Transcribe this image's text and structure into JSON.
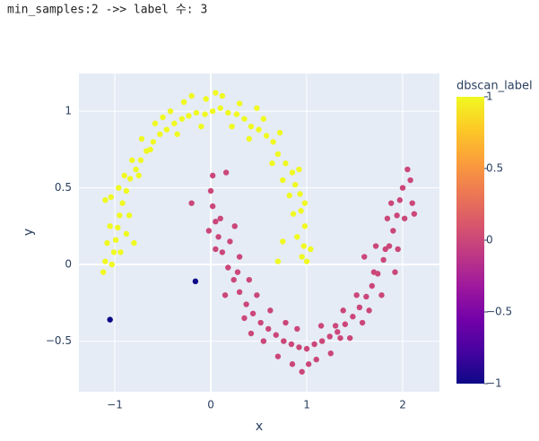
{
  "chart_data": {
    "type": "scatter",
    "title": "min_samples:2 ->> label 수: 3",
    "xlabel": "x",
    "ylabel": "y",
    "colorbar_title": "dbscan_label",
    "x": [
      1.0,
      0.97,
      0.98,
      0.94,
      0.93,
      0.88,
      0.85,
      0.78,
      0.7,
      0.65,
      0.58,
      0.5,
      0.42,
      0.35,
      0.27,
      0.18,
      0.1,
      0.02,
      -0.06,
      -0.15,
      -0.23,
      -0.3,
      -0.38,
      -0.46,
      -0.53,
      -0.6,
      -0.67,
      -0.73,
      -0.78,
      -0.84,
      -0.88,
      -0.92,
      -0.95,
      -0.97,
      -0.99,
      -1.01,
      -1.03,
      -1.12,
      -1.1,
      -1.05,
      1.04,
      0.9,
      0.95,
      0.86,
      0.98,
      0.82,
      0.75,
      0.92,
      0.64,
      0.72,
      0.55,
      0.48,
      0.4,
      0.3,
      0.22,
      0.12,
      0.05,
      -0.05,
      -0.1,
      -0.2,
      -0.28,
      -0.35,
      -0.42,
      -0.5,
      -0.58,
      -0.63,
      -0.72,
      -0.75,
      -0.82,
      -0.9,
      -0.96,
      -1.04,
      -0.85,
      -0.88,
      -1.08,
      -0.94,
      -1.1,
      -0.8,
      0.7,
      0.75,
      0.0,
      0.02,
      0.05,
      0.08,
      0.12,
      0.18,
      0.24,
      0.3,
      0.37,
      0.44,
      0.52,
      0.6,
      0.68,
      0.76,
      0.84,
      0.92,
      1.0,
      1.08,
      1.16,
      1.24,
      1.32,
      1.4,
      1.48,
      1.55,
      1.62,
      1.68,
      1.74,
      1.8,
      1.86,
      1.9,
      1.94,
      1.97,
      2.0,
      1.72,
      0.16,
      -0.2,
      0.02,
      2.12,
      2.05,
      1.6,
      0.05,
      0.1,
      -0.02,
      0.2,
      0.28,
      0.15,
      0.35,
      0.48,
      0.42,
      0.55,
      0.62,
      0.7,
      0.78,
      0.85,
      0.95,
      1.02,
      0.9,
      1.1,
      1.15,
      1.25,
      1.3,
      1.35,
      1.38,
      1.45,
      1.52,
      1.58,
      1.65,
      1.7,
      1.78,
      1.82,
      1.88,
      1.92,
      1.95,
      2.02,
      2.08,
      2.1,
      1.84,
      0.25,
      0.3,
      0.4,
      -1.05,
      -0.16
    ],
    "y": [
      0.02,
      0.12,
      0.25,
      0.35,
      0.46,
      0.52,
      0.6,
      0.66,
      0.72,
      0.8,
      0.84,
      0.88,
      0.9,
      0.95,
      0.98,
      0.99,
      1.02,
      1.0,
      0.98,
      0.99,
      0.97,
      0.95,
      0.92,
      0.88,
      0.85,
      0.8,
      0.74,
      0.68,
      0.62,
      0.56,
      0.48,
      0.4,
      0.32,
      0.24,
      0.16,
      0.08,
      0.0,
      -0.05,
      0.42,
      0.25,
      0.1,
      0.18,
      0.05,
      0.33,
      0.4,
      0.45,
      0.55,
      0.62,
      0.66,
      0.86,
      0.95,
      1.02,
      0.82,
      1.05,
      0.9,
      1.1,
      1.12,
      1.08,
      0.9,
      1.1,
      1.06,
      0.85,
      1.0,
      0.96,
      0.92,
      0.75,
      0.82,
      0.58,
      0.68,
      0.58,
      0.5,
      0.44,
      0.32,
      0.2,
      0.14,
      0.08,
      0.02,
      0.14,
      0.02,
      0.15,
      0.48,
      0.38,
      0.28,
      0.18,
      0.08,
      -0.02,
      -0.1,
      -0.18,
      -0.26,
      -0.32,
      -0.38,
      -0.42,
      -0.46,
      -0.5,
      -0.52,
      -0.54,
      -0.55,
      -0.52,
      -0.5,
      -0.47,
      -0.44,
      -0.39,
      -0.34,
      -0.28,
      -0.21,
      -0.14,
      -0.06,
      0.03,
      0.12,
      0.22,
      0.32,
      0.42,
      0.5,
      0.12,
      0.6,
      0.4,
      0.58,
      0.33,
      0.62,
      0.05,
      0.1,
      0.3,
      0.22,
      0.15,
      -0.05,
      -0.2,
      -0.35,
      -0.2,
      -0.45,
      -0.5,
      -0.3,
      -0.6,
      -0.38,
      -0.65,
      -0.7,
      -0.65,
      -0.42,
      -0.62,
      -0.4,
      -0.58,
      -0.4,
      -0.48,
      -0.3,
      -0.48,
      -0.2,
      -0.38,
      -0.3,
      -0.05,
      -0.2,
      0.1,
      0.4,
      -0.05,
      0.1,
      0.3,
      0.55,
      0.4,
      0.3,
      0.25,
      0.05,
      -0.1,
      -0.36,
      -0.11
    ],
    "color_values": [
      1,
      1,
      1,
      1,
      1,
      1,
      1,
      1,
      1,
      1,
      1,
      1,
      1,
      1,
      1,
      1,
      1,
      1,
      1,
      1,
      1,
      1,
      1,
      1,
      1,
      1,
      1,
      1,
      1,
      1,
      1,
      1,
      1,
      1,
      1,
      1,
      1,
      1,
      1,
      1,
      1,
      1,
      1,
      1,
      1,
      1,
      1,
      1,
      1,
      1,
      1,
      1,
      1,
      1,
      1,
      1,
      1,
      1,
      1,
      1,
      1,
      1,
      1,
      1,
      1,
      1,
      1,
      1,
      1,
      1,
      1,
      1,
      1,
      1,
      1,
      1,
      1,
      1,
      1,
      1,
      0,
      0,
      0,
      0,
      0,
      0,
      0,
      0,
      0,
      0,
      0,
      0,
      0,
      0,
      0,
      0,
      0,
      0,
      0,
      0,
      0,
      0,
      0,
      0,
      0,
      0,
      0,
      0,
      0,
      0,
      0,
      0,
      0,
      0,
      0,
      0,
      0,
      0,
      0,
      0,
      0,
      0,
      0,
      0,
      0,
      0,
      0,
      0,
      0,
      0,
      0,
      0,
      0,
      0,
      0,
      0,
      0,
      0,
      0,
      0,
      0,
      0,
      0,
      0,
      0,
      0,
      0,
      0,
      0,
      0,
      0,
      0,
      0,
      0,
      0,
      0,
      0,
      0,
      0,
      0,
      -1,
      -1
    ],
    "colorscale": [
      "#0d0887",
      "#46039f",
      "#7201a8",
      "#9c179e",
      "#bd3786",
      "#d8576b",
      "#ed7953",
      "#fb9f3a",
      "#fdca26",
      "#f0f921"
    ],
    "clim": [
      -1,
      1
    ],
    "cticks": [
      1,
      0.5,
      0,
      {
        "value": -0.5,
        "label": "−0.5"
      },
      {
        "value": -1,
        "label": "−1"
      }
    ],
    "xlim": [
      -1.374,
      2.383
    ],
    "ylim": [
      -0.83,
      1.246
    ],
    "xticks": [
      {
        "value": -1,
        "label": "−1"
      },
      0,
      1,
      2
    ],
    "yticks": [
      1,
      0.5,
      0,
      {
        "value": -0.5,
        "label": "−0.5"
      }
    ],
    "grid": true
  }
}
